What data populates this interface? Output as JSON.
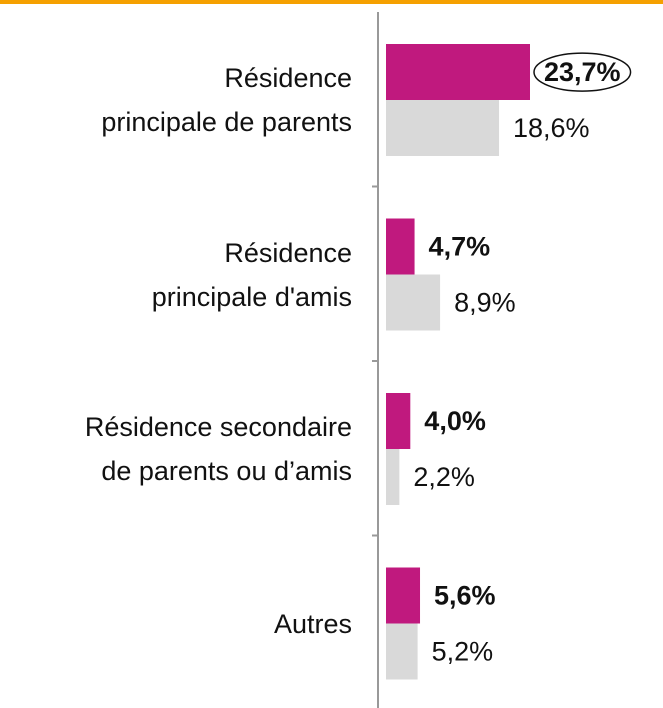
{
  "chart_data": {
    "type": "hbar",
    "categories": [
      "Résidence\nprincipale de parents",
      "Résidence\nprincipale d'amis",
      "Résidence secondaire\nde parents ou d’amis",
      "Autres"
    ],
    "series": [
      {
        "color": "#c0197e",
        "values": [
          23.7,
          4.7,
          4.0,
          5.6
        ],
        "value_labels": [
          "23,7%",
          "4,7%",
          "4,0%",
          "5,6%"
        ]
      },
      {
        "color": "#d9d9d9",
        "values": [
          18.6,
          8.9,
          2.2,
          5.2
        ],
        "value_labels": [
          "18,6%",
          "8,9%",
          "2,2%",
          "5,2%"
        ]
      }
    ]
  }
}
